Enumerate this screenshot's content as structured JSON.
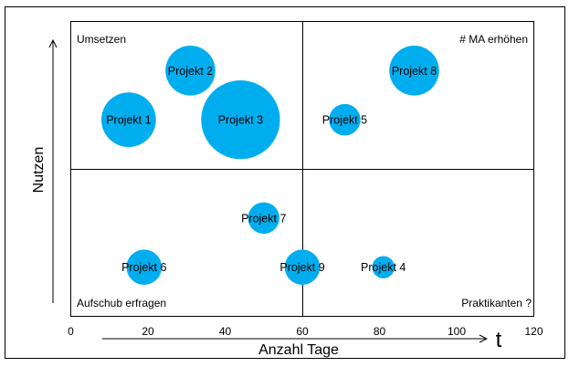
{
  "chart_data": {
    "type": "scatter",
    "subtype": "bubble",
    "xlabel": "Anzahl Tage",
    "x_unit_symbol": "t",
    "ylabel": "Nutzen",
    "xlim": [
      0,
      120
    ],
    "ylim": [
      0,
      6
    ],
    "xticks": [
      "0",
      "20",
      "40",
      "60",
      "80",
      "100",
      "120"
    ],
    "x_divider": 60,
    "y_divider": 3,
    "bubble_color": "#00AEEF",
    "quadrants": {
      "top_left": "Umsetzen",
      "top_right": "# MA erhöhen",
      "bottom_left": "Aufschub erfragen",
      "bottom_right": "Praktikanten ?"
    },
    "points": [
      {
        "label": "Projekt 1",
        "x": 15,
        "y": 4,
        "size": 6
      },
      {
        "label": "Projekt 2",
        "x": 31,
        "y": 5,
        "size": 5
      },
      {
        "label": "Projekt 3",
        "x": 44,
        "y": 4,
        "size": 12.5
      },
      {
        "label": "Projekt 4",
        "x": 81,
        "y": 1,
        "size": 1
      },
      {
        "label": "Projekt 5",
        "x": 71,
        "y": 4,
        "size": 2
      },
      {
        "label": "Projekt 6",
        "x": 19,
        "y": 1,
        "size": 2.5
      },
      {
        "label": "Projekt 7",
        "x": 50,
        "y": 2,
        "size": 2
      },
      {
        "label": "Projekt 8",
        "x": 89,
        "y": 5,
        "size": 5
      },
      {
        "label": "Projekt 9",
        "x": 60,
        "y": 1,
        "size": 2.5
      }
    ]
  }
}
